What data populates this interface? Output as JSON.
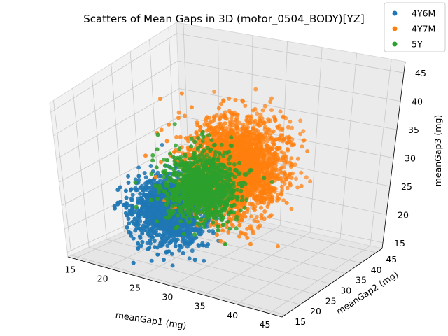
{
  "chart_data": {
    "type": "scatter",
    "projection": "3d",
    "title": "Scatters of Mean Gaps in 3D (motor_0504_BODY)[YZ]",
    "xlabel": "meanGap1 (mg)",
    "ylabel": "meanGap2 (mg)",
    "zlabel": "meanGap3 (mg)",
    "xlim": [
      14,
      47
    ],
    "ylim": [
      14,
      47
    ],
    "zlim": [
      14,
      47
    ],
    "xticks": [
      "15",
      "20",
      "25",
      "30",
      "35",
      "40",
      "45"
    ],
    "yticks": [
      "15",
      "20",
      "25",
      "30",
      "35",
      "40",
      "45"
    ],
    "zticks": [
      "15",
      "20",
      "25",
      "30",
      "35",
      "40",
      "45"
    ],
    "grid": true,
    "legend_position": "top-right",
    "series": [
      {
        "name": "4Y6M",
        "color": "#1f77b4",
        "count": 1400,
        "center": [
          26,
          22,
          25
        ],
        "spread": [
          2.5,
          2.5,
          3
        ]
      },
      {
        "name": "4Y7M",
        "color": "#ff7f0e",
        "count": 2600,
        "center": [
          32,
          30,
          32
        ],
        "spread": [
          3,
          3.5,
          4
        ]
      },
      {
        "name": "5Y",
        "color": "#2ca02c",
        "count": 1100,
        "center": [
          29,
          26,
          29
        ],
        "spread": [
          2.5,
          2.5,
          3
        ]
      }
    ]
  }
}
